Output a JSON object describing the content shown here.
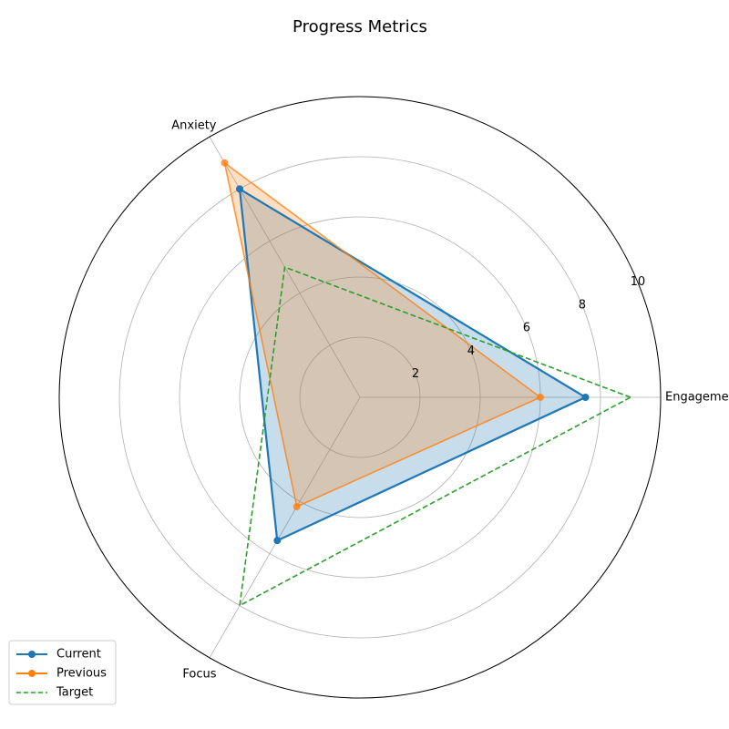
{
  "chart_data": {
    "type": "radar",
    "title": "Progress Metrics",
    "categories": [
      "Engagement",
      "Anxiety",
      "Focus"
    ],
    "radial_ticks": [
      2,
      4,
      6,
      8,
      10
    ],
    "rlim": [
      0,
      10
    ],
    "grid": true,
    "legend_position": "bottom-left",
    "series": [
      {
        "name": "Current",
        "values": [
          7.5,
          8.0,
          5.5
        ],
        "color": "#1f77b4",
        "style": "solid",
        "markers": true,
        "filled": true
      },
      {
        "name": "Previous",
        "values": [
          6.0,
          9.0,
          4.2
        ],
        "color": "#ff7f0e",
        "style": "solid",
        "markers": true,
        "filled": true
      },
      {
        "name": "Target",
        "values": [
          9.0,
          5.0,
          8.0
        ],
        "color": "#2ca02c",
        "style": "dashed",
        "markers": false,
        "filled": false
      }
    ]
  }
}
